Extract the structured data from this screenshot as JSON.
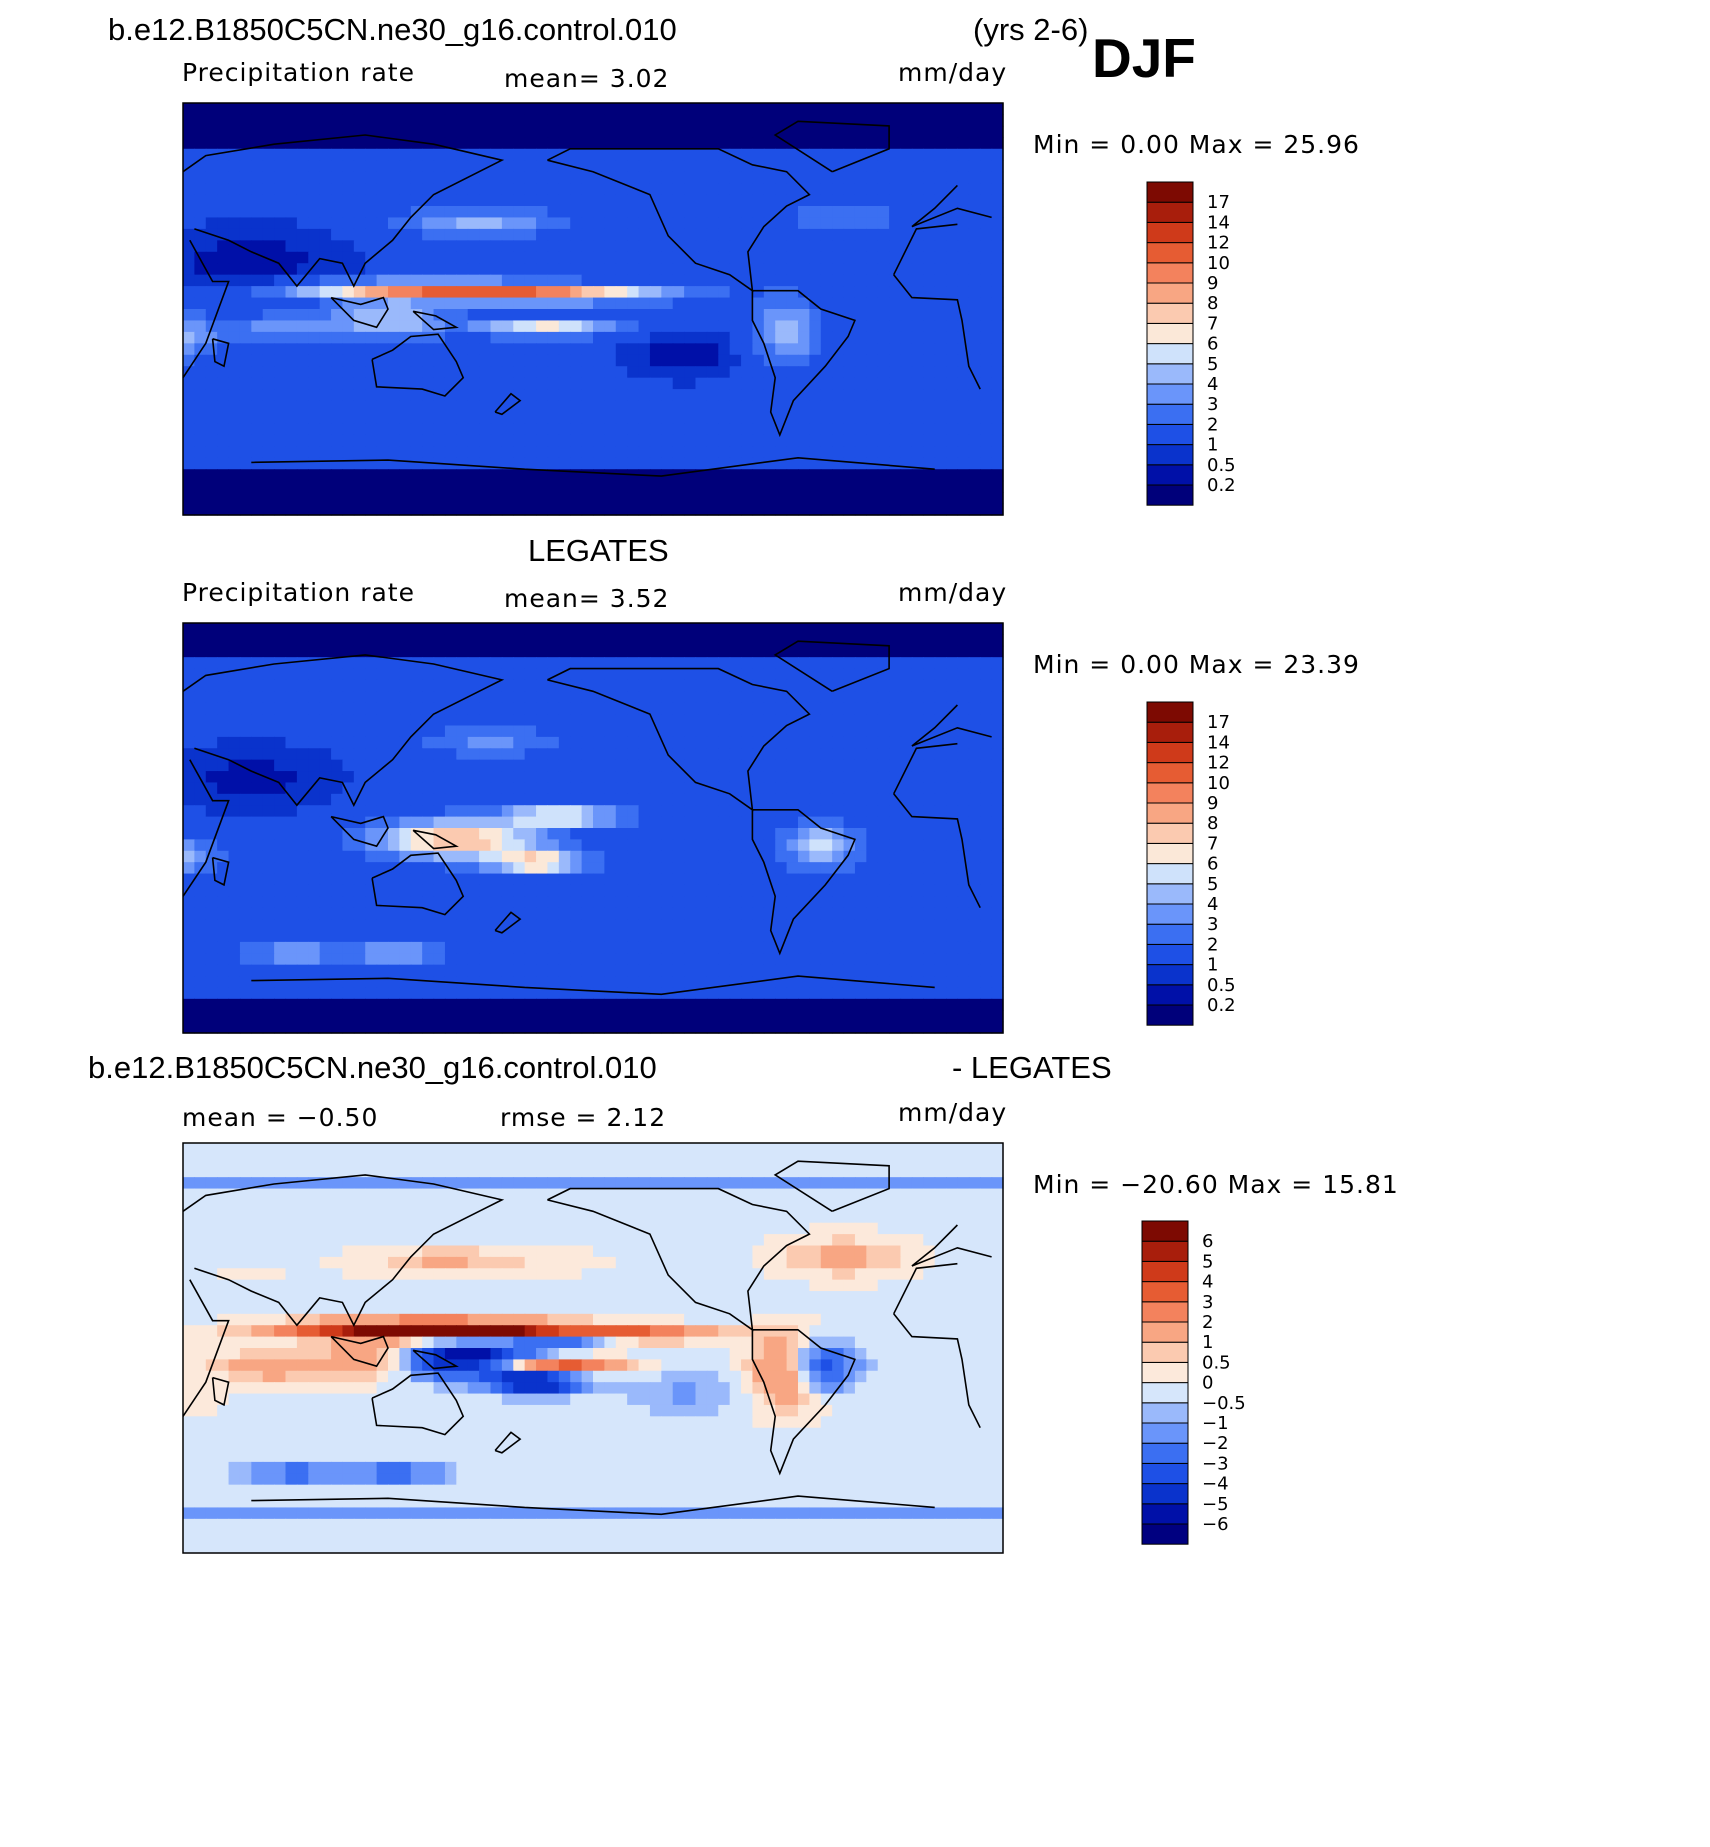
{
  "header": {
    "case_name": "b.e12.B1850C5CN.ne30_g16.control.010",
    "years": "(yrs 2-6)",
    "season": "DJF"
  },
  "panels": [
    {
      "title": "",
      "variable": "Precipitation rate",
      "stat1": "mean=    3.02",
      "units": "mm/day",
      "minmax": "Min =     0.00  Max =    25.96",
      "colors": {
        "palette": "sequential_precip"
      }
    },
    {
      "title": "LEGATES",
      "variable": "Precipitation rate",
      "stat1": "mean=    3.52",
      "units": "mm/day",
      "minmax": "Min =     0.00  Max =    23.39",
      "colors": {
        "palette": "sequential_precip"
      }
    },
    {
      "title": "b.e12.B1850C5CN.ne30_g16.control.010",
      "title_right": "- LEGATES",
      "stat1": "mean =   −0.50",
      "stat2": "rmse =    2.12",
      "units": "mm/day",
      "minmax": "Min = −20.60  Max =    15.81",
      "colors": {
        "palette": "diverging_diff"
      }
    }
  ],
  "chart_data": [
    {
      "type": "heatmap",
      "title": "Precipitation rate",
      "units": "mm/day",
      "mean": 3.02,
      "min": 0.0,
      "max": 25.96,
      "levels": [
        "0.2",
        "0.5",
        "1",
        "2",
        "3",
        "4",
        "5",
        "6",
        "7",
        "8",
        "9",
        "10",
        "12",
        "14",
        "17"
      ],
      "colors": [
        "#00007a",
        "#0010a8",
        "#0a33cc",
        "#1e50e6",
        "#3b6ff2",
        "#6a95fa",
        "#9ab9fb",
        "#cfe2fb",
        "#fbe8d8",
        "#fbcab0",
        "#f8a683",
        "#f3825d",
        "#e65c33",
        "#cf3a1a",
        "#a81e0c",
        "#7d0a02"
      ]
    },
    {
      "type": "heatmap",
      "title": "LEGATES Precipitation rate",
      "units": "mm/day",
      "mean": 3.52,
      "min": 0.0,
      "max": 23.39,
      "levels": [
        "0.2",
        "0.5",
        "1",
        "2",
        "3",
        "4",
        "5",
        "6",
        "7",
        "8",
        "9",
        "10",
        "12",
        "14",
        "17"
      ],
      "colors": [
        "#00007a",
        "#0010a8",
        "#0a33cc",
        "#1e50e6",
        "#3b6ff2",
        "#6a95fa",
        "#9ab9fb",
        "#cfe2fb",
        "#fbe8d8",
        "#fbcab0",
        "#f8a683",
        "#f3825d",
        "#e65c33",
        "#cf3a1a",
        "#a81e0c",
        "#7d0a02"
      ]
    },
    {
      "type": "heatmap",
      "title": "b.e12.B1850C5CN.ne30_g16.control.010 - LEGATES",
      "units": "mm/day",
      "mean": -0.5,
      "rmse": 2.12,
      "min": -20.6,
      "max": 15.81,
      "levels": [
        "−6",
        "−5",
        "−4",
        "−3",
        "−2",
        "−1",
        "−0.5",
        "0",
        "0.5",
        "1",
        "2",
        "3",
        "4",
        "5",
        "6"
      ],
      "colors": [
        "#000080",
        "#0010a8",
        "#0a33cc",
        "#1e50e6",
        "#3b6ff2",
        "#6a95fa",
        "#9ab9fb",
        "#d6e6fb",
        "#fce9db",
        "#fbcab0",
        "#f8a683",
        "#f3825d",
        "#e65c33",
        "#cf3a1a",
        "#a81e0c",
        "#7d0a02"
      ]
    }
  ]
}
